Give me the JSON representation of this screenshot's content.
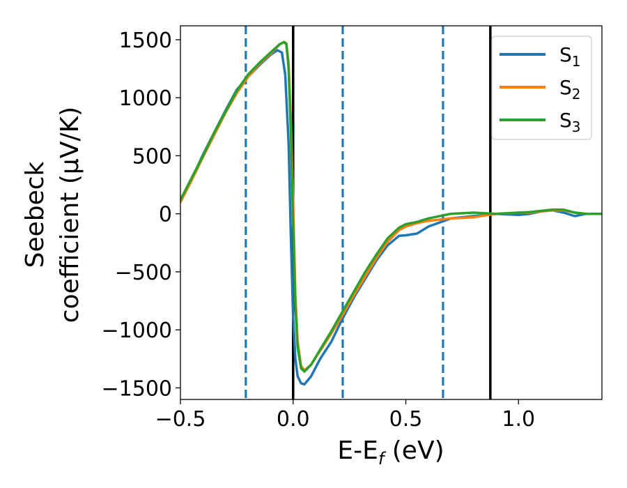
{
  "chart_data": {
    "type": "line",
    "title": "",
    "xlabel": "E-E",
    "xlabel_sub": "f",
    "xlabel_unit": " (eV)",
    "ylabel_line1": "Seebeck",
    "ylabel_line2": "coefficient  (μV/K)",
    "xlim": [
      -0.5,
      1.37
    ],
    "ylim": [
      -1600,
      1620
    ],
    "xticks": [
      -0.5,
      0.0,
      0.5,
      1.0
    ],
    "xtick_labels": [
      "−0.5",
      "0.0",
      "0.5",
      "1.0"
    ],
    "yticks": [
      -1500,
      -1000,
      -500,
      0,
      500,
      1000,
      1500
    ],
    "ytick_labels": [
      "−1500",
      "−1000",
      "−500",
      "0",
      "500",
      "1000",
      "1500"
    ],
    "grid": false,
    "legend_position": "top-right",
    "vertical_lines": [
      {
        "x": -0.21,
        "style": "dashed",
        "color": "#1f77b4"
      },
      {
        "x": 0.0,
        "style": "solid",
        "color": "#000000"
      },
      {
        "x": 0.22,
        "style": "dashed",
        "color": "#1f77b4"
      },
      {
        "x": 0.665,
        "style": "dashed",
        "color": "#1f77b4"
      },
      {
        "x": 0.875,
        "style": "solid",
        "color": "#000000"
      }
    ],
    "series": [
      {
        "name": "S",
        "name_sub": "1",
        "color": "#1f77b4",
        "x": [
          -0.5,
          -0.45,
          -0.4,
          -0.35,
          -0.3,
          -0.25,
          -0.2,
          -0.15,
          -0.1,
          -0.07,
          -0.05,
          -0.035,
          -0.02,
          -0.01,
          0.0,
          0.01,
          0.02,
          0.035,
          0.05,
          0.08,
          0.12,
          0.17,
          0.22,
          0.27,
          0.32,
          0.37,
          0.42,
          0.47,
          0.5,
          0.55,
          0.6,
          0.7,
          0.8,
          0.9,
          1.0,
          1.05,
          1.1,
          1.15,
          1.2,
          1.25,
          1.3,
          1.37
        ],
        "y": [
          110,
          300,
          510,
          700,
          890,
          1070,
          1180,
          1280,
          1370,
          1410,
          1390,
          1200,
          600,
          -200,
          -900,
          -1250,
          -1400,
          -1460,
          -1470,
          -1400,
          -1250,
          -1100,
          -900,
          -720,
          -560,
          -400,
          -270,
          -190,
          -185,
          -170,
          -110,
          -40,
          -20,
          0,
          -10,
          0,
          20,
          30,
          10,
          -20,
          0,
          0
        ]
      },
      {
        "name": "S",
        "name_sub": "2",
        "color": "#ff7f0e",
        "x": [
          -0.5,
          -0.45,
          -0.4,
          -0.35,
          -0.3,
          -0.25,
          -0.2,
          -0.15,
          -0.1,
          -0.06,
          -0.04,
          -0.03,
          -0.02,
          -0.01,
          0.0,
          0.01,
          0.02,
          0.035,
          0.05,
          0.08,
          0.12,
          0.17,
          0.22,
          0.27,
          0.32,
          0.37,
          0.42,
          0.47,
          0.5,
          0.55,
          0.6,
          0.7,
          0.8,
          0.9,
          1.0,
          1.05,
          1.1,
          1.15,
          1.2,
          1.25,
          1.3,
          1.37
        ],
        "y": [
          100,
          290,
          490,
          680,
          870,
          1040,
          1180,
          1290,
          1380,
          1460,
          1480,
          1470,
          1300,
          800,
          100,
          -700,
          -1100,
          -1310,
          -1350,
          -1300,
          -1180,
          -1030,
          -870,
          -700,
          -540,
          -380,
          -240,
          -140,
          -110,
          -80,
          -60,
          -40,
          -30,
          0,
          10,
          10,
          20,
          30,
          30,
          10,
          0,
          0
        ]
      },
      {
        "name": "S",
        "name_sub": "3",
        "color": "#2ca02c",
        "x": [
          -0.5,
          -0.45,
          -0.4,
          -0.35,
          -0.3,
          -0.25,
          -0.2,
          -0.15,
          -0.1,
          -0.06,
          -0.04,
          -0.03,
          -0.02,
          -0.01,
          0.0,
          0.01,
          0.02,
          0.035,
          0.05,
          0.08,
          0.12,
          0.17,
          0.22,
          0.27,
          0.32,
          0.37,
          0.42,
          0.47,
          0.5,
          0.55,
          0.6,
          0.7,
          0.8,
          0.9,
          1.0,
          1.05,
          1.1,
          1.15,
          1.2,
          1.25,
          1.3,
          1.37
        ],
        "y": [
          120,
          310,
          500,
          700,
          880,
          1060,
          1200,
          1300,
          1390,
          1460,
          1480,
          1460,
          1250,
          700,
          -100,
          -800,
          -1150,
          -1330,
          -1360,
          -1300,
          -1170,
          -1010,
          -840,
          -670,
          -500,
          -350,
          -210,
          -120,
          -90,
          -70,
          -40,
          0,
          10,
          0,
          10,
          15,
          25,
          35,
          35,
          10,
          0,
          0
        ]
      }
    ]
  }
}
